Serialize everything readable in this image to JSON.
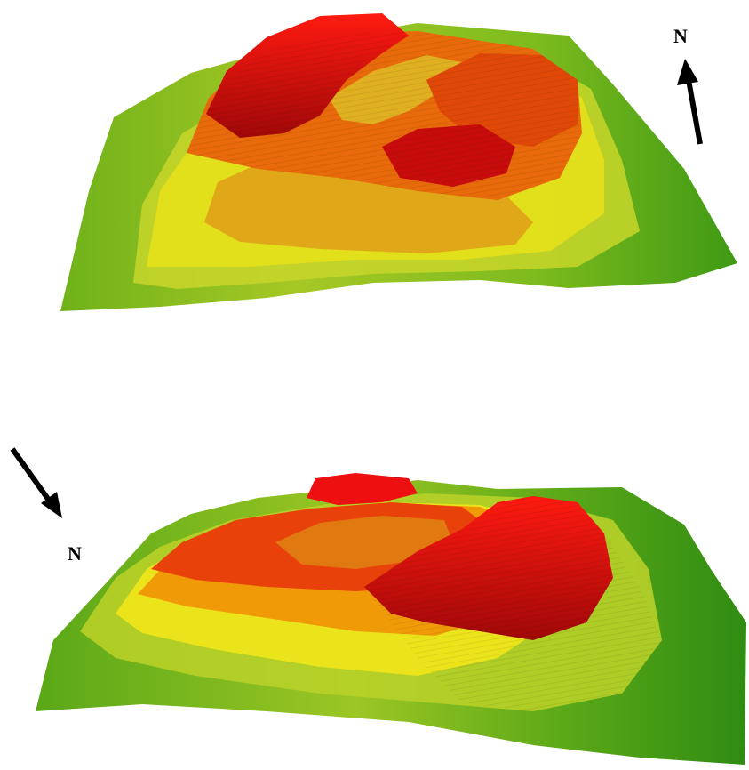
{
  "views": {
    "top": {
      "north_label": "N",
      "arrow_icon": "north-arrow-icon"
    },
    "bottom": {
      "north_label": "N",
      "arrow_icon": "north-arrow-icon"
    }
  },
  "colors": {
    "low": "#3f9a14",
    "low_mid": "#8dc020",
    "mid": "#e8e414",
    "mid_high": "#f0a000",
    "high": "#e83c00",
    "peak": "#d80a0a",
    "arrow": "#000000"
  }
}
